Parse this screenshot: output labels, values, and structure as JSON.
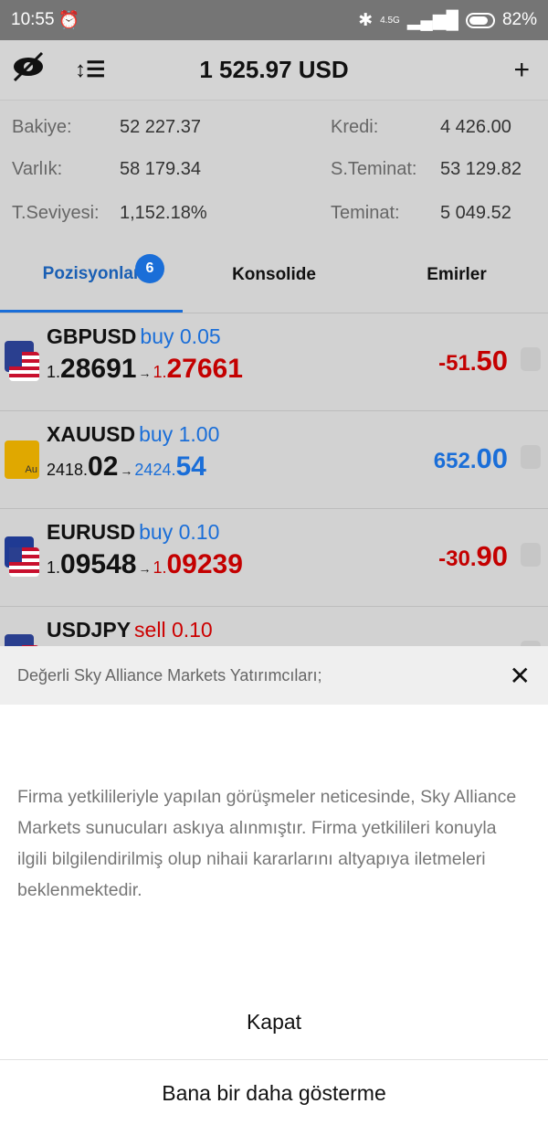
{
  "status": {
    "time": "10:55",
    "network": "4.5G",
    "battery": "82%"
  },
  "toolbar": {
    "title": "1 525.97 USD",
    "add": "+"
  },
  "account": {
    "left": [
      {
        "label": "Bakiye:",
        "value": "52 227.37"
      },
      {
        "label": "Varlık:",
        "value": "58 179.34"
      },
      {
        "label": "T.Seviyesi:",
        "value": "1,152.18%"
      }
    ],
    "right": [
      {
        "label": "Kredi:",
        "value": "4 426.00"
      },
      {
        "label": "S.Teminat:",
        "value": "53 129.82"
      },
      {
        "label": "Teminat:",
        "value": "5 049.52"
      }
    ]
  },
  "tabs": [
    {
      "label": "Pozisyonlar",
      "badge": "6"
    },
    {
      "label": "Konsolide"
    },
    {
      "label": "Emirler"
    }
  ],
  "positions": [
    {
      "symbol": "GBPUSD",
      "side": "buy",
      "volume": "0.05",
      "open_prefix": "1.",
      "open_main": "28691",
      "cur_prefix": "1.",
      "cur_main": "27661",
      "pl_prefix": "-51.",
      "pl_main": "50",
      "trend": "down"
    },
    {
      "symbol": "XAUUSD",
      "side": "buy",
      "volume": "1.00",
      "open_prefix": "2418.",
      "open_main": "02",
      "cur_prefix": "2424.",
      "cur_main": "54",
      "pl_prefix": "652.",
      "pl_main": "00",
      "trend": "up"
    },
    {
      "symbol": "EURUSD",
      "side": "buy",
      "volume": "0.10",
      "open_prefix": "1.",
      "open_main": "09548",
      "cur_prefix": "1.",
      "cur_main": "09239",
      "pl_prefix": "-30.",
      "pl_main": "90",
      "trend": "down"
    },
    {
      "symbol": "USDJPY",
      "side": "sell",
      "volume": "0.10"
    }
  ],
  "modal": {
    "title": "Değerli Sky Alliance Markets Yatırımcıları;",
    "body": "Firma yetkilileriyle yapılan görüşmeler neticesinde, Sky Alliance Markets sunucuları askıya alınmıştır. Firma yetkilileri konuyla ilgili bilgilendirilmiş olup nihaii kararlarını altyapıya iletmeleri beklenmektedir.",
    "close_label": "Kapat",
    "dont_show_label": "Bana bir daha gösterme"
  },
  "colors": {
    "accent": "#1a6ed8",
    "loss": "#c40000"
  }
}
